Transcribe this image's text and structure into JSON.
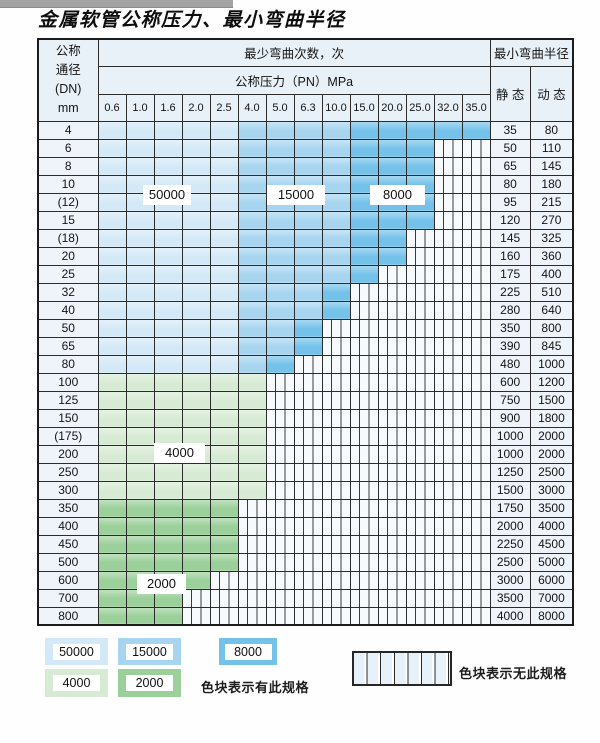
{
  "title": "金属软管公称压力、最小弯曲半径",
  "colors": {
    "50000": "#d4e9f7",
    "15000": "#a7d5f0",
    "8000": "#74c2e9",
    "4000": "#d7ebd4",
    "2000": "#9bd09a"
  },
  "table": {
    "corner": {
      "lines": [
        "公称",
        "通径",
        "(DN)",
        "mm"
      ]
    },
    "cycles_title": "最少弯曲次数，次",
    "pressure_title": "公称压力（PN）MPa",
    "pressure_columns": [
      "0.6",
      "1.0",
      "1.6",
      "2.0",
      "2.5",
      "4.0",
      "5.0",
      "6.3",
      "10.0",
      "15.0",
      "20.0",
      "25.0",
      "32.0",
      "35.0"
    ],
    "radius_title": "最小弯曲半径",
    "static_label": "静 态",
    "dynamic_label": "动 态",
    "rows": [
      {
        "dn": "4",
        "bands": [
          [
            "50000",
            5
          ],
          [
            "15000",
            4
          ],
          [
            "8000",
            5
          ]
        ],
        "static": "35",
        "dynamic": "80"
      },
      {
        "dn": "6",
        "bands": [
          [
            "50000",
            5
          ],
          [
            "15000",
            4
          ],
          [
            "8000",
            3
          ]
        ],
        "static": "50",
        "dynamic": "110"
      },
      {
        "dn": "8",
        "bands": [
          [
            "50000",
            5
          ],
          [
            "15000",
            4
          ],
          [
            "8000",
            3
          ]
        ],
        "static": "65",
        "dynamic": "145"
      },
      {
        "dn": "10",
        "bands": [
          [
            "50000",
            5
          ],
          [
            "15000",
            4
          ],
          [
            "8000",
            3
          ]
        ],
        "static": "80",
        "dynamic": "180"
      },
      {
        "dn": "(12)",
        "bands": [
          [
            "50000",
            5
          ],
          [
            "15000",
            4
          ],
          [
            "8000",
            3
          ]
        ],
        "static": "95",
        "dynamic": "215"
      },
      {
        "dn": "15",
        "bands": [
          [
            "50000",
            5
          ],
          [
            "15000",
            4
          ],
          [
            "8000",
            3
          ]
        ],
        "static": "120",
        "dynamic": "270"
      },
      {
        "dn": "(18)",
        "bands": [
          [
            "50000",
            5
          ],
          [
            "15000",
            4
          ],
          [
            "8000",
            2
          ]
        ],
        "static": "145",
        "dynamic": "325"
      },
      {
        "dn": "20",
        "bands": [
          [
            "50000",
            5
          ],
          [
            "15000",
            4
          ],
          [
            "8000",
            2
          ]
        ],
        "static": "160",
        "dynamic": "360"
      },
      {
        "dn": "25",
        "bands": [
          [
            "50000",
            5
          ],
          [
            "15000",
            4
          ],
          [
            "8000",
            1
          ]
        ],
        "static": "175",
        "dynamic": "400"
      },
      {
        "dn": "32",
        "bands": [
          [
            "50000",
            5
          ],
          [
            "15000",
            3
          ],
          [
            "8000",
            1
          ]
        ],
        "static": "225",
        "dynamic": "510"
      },
      {
        "dn": "40",
        "bands": [
          [
            "50000",
            5
          ],
          [
            "15000",
            3
          ],
          [
            "8000",
            1
          ]
        ],
        "static": "280",
        "dynamic": "640"
      },
      {
        "dn": "50",
        "bands": [
          [
            "50000",
            5
          ],
          [
            "15000",
            2
          ],
          [
            "8000",
            1
          ]
        ],
        "static": "350",
        "dynamic": "800"
      },
      {
        "dn": "65",
        "bands": [
          [
            "50000",
            5
          ],
          [
            "15000",
            2
          ],
          [
            "8000",
            1
          ]
        ],
        "static": "390",
        "dynamic": "845"
      },
      {
        "dn": "80",
        "bands": [
          [
            "50000",
            5
          ],
          [
            "15000",
            1
          ],
          [
            "8000",
            1
          ]
        ],
        "static": "480",
        "dynamic": "1000"
      },
      {
        "dn": "100",
        "bands": [
          [
            "4000",
            6
          ]
        ],
        "static": "600",
        "dynamic": "1200"
      },
      {
        "dn": "125",
        "bands": [
          [
            "4000",
            6
          ]
        ],
        "static": "750",
        "dynamic": "1500"
      },
      {
        "dn": "150",
        "bands": [
          [
            "4000",
            6
          ]
        ],
        "static": "900",
        "dynamic": "1800"
      },
      {
        "dn": "(175)",
        "bands": [
          [
            "4000",
            6
          ]
        ],
        "static": "1000",
        "dynamic": "2000"
      },
      {
        "dn": "200",
        "bands": [
          [
            "4000",
            6
          ]
        ],
        "static": "1000",
        "dynamic": "2000"
      },
      {
        "dn": "250",
        "bands": [
          [
            "4000",
            6
          ]
        ],
        "static": "1250",
        "dynamic": "2500"
      },
      {
        "dn": "300",
        "bands": [
          [
            "4000",
            6
          ]
        ],
        "static": "1500",
        "dynamic": "3000"
      },
      {
        "dn": "350",
        "bands": [
          [
            "2000",
            5
          ]
        ],
        "static": "1750",
        "dynamic": "3500"
      },
      {
        "dn": "400",
        "bands": [
          [
            "2000",
            5
          ]
        ],
        "static": "2000",
        "dynamic": "4000"
      },
      {
        "dn": "450",
        "bands": [
          [
            "2000",
            5
          ]
        ],
        "static": "2250",
        "dynamic": "4500"
      },
      {
        "dn": "500",
        "bands": [
          [
            "2000",
            5
          ]
        ],
        "static": "2500",
        "dynamic": "5000"
      },
      {
        "dn": "600",
        "bands": [
          [
            "2000",
            4
          ]
        ],
        "static": "3000",
        "dynamic": "6000"
      },
      {
        "dn": "700",
        "bands": [
          [
            "2000",
            3
          ]
        ],
        "static": "3500",
        "dynamic": "7000"
      },
      {
        "dn": "800",
        "bands": [
          [
            "2000",
            3
          ]
        ],
        "static": "4000",
        "dynamic": "8000"
      }
    ]
  },
  "overlays": [
    {
      "text": "50000"
    },
    {
      "text": "15000"
    },
    {
      "text": "8000"
    },
    {
      "text": "4000"
    },
    {
      "text": "2000"
    }
  ],
  "legend": {
    "items": [
      {
        "value": "50000"
      },
      {
        "value": "15000"
      },
      {
        "value": "8000"
      },
      {
        "value": "4000"
      },
      {
        "value": "2000"
      }
    ],
    "has_spec_text": "色块表示有此规格",
    "no_spec_text": "色块表示无此规格"
  }
}
